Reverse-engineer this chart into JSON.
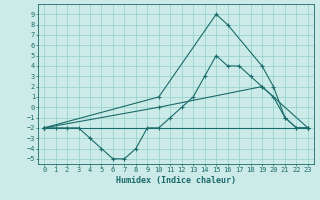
{
  "xlabel": "Humidex (Indice chaleur)",
  "background_color": "#cceae7",
  "grid_color": "#99d5d0",
  "line_color": "#1a6b6b",
  "xlim": [
    -0.5,
    23.5
  ],
  "ylim": [
    -5.5,
    10
  ],
  "xticks": [
    0,
    1,
    2,
    3,
    4,
    5,
    6,
    7,
    8,
    9,
    10,
    11,
    12,
    13,
    14,
    15,
    16,
    17,
    18,
    19,
    20,
    21,
    22,
    23
  ],
  "yticks": [
    -5,
    -4,
    -3,
    -2,
    -1,
    0,
    1,
    2,
    3,
    4,
    5,
    6,
    7,
    8,
    9
  ],
  "series": [
    {
      "x": [
        0,
        1,
        2,
        3,
        4,
        5,
        6,
        7,
        8,
        9,
        10,
        11,
        12,
        13,
        14,
        15,
        16,
        17,
        18,
        19,
        20,
        21,
        22,
        23
      ],
      "y": [
        -2,
        -2,
        -2,
        -2,
        -3,
        -4,
        -5,
        -5,
        -4,
        -2,
        -2,
        -1,
        0,
        1,
        3,
        5,
        4,
        4,
        3,
        2,
        1,
        -1,
        -2,
        -2
      ]
    },
    {
      "x": [
        0,
        23
      ],
      "y": [
        -2,
        -2
      ]
    },
    {
      "x": [
        0,
        10,
        19,
        23
      ],
      "y": [
        -2,
        0,
        2,
        -2
      ]
    },
    {
      "x": [
        0,
        10,
        15,
        16,
        19,
        20,
        21,
        22,
        23
      ],
      "y": [
        -2,
        1,
        9,
        8,
        4,
        2,
        -1,
        -2,
        -2
      ]
    }
  ],
  "xlabel_fontsize": 6,
  "tick_fontsize": 5
}
